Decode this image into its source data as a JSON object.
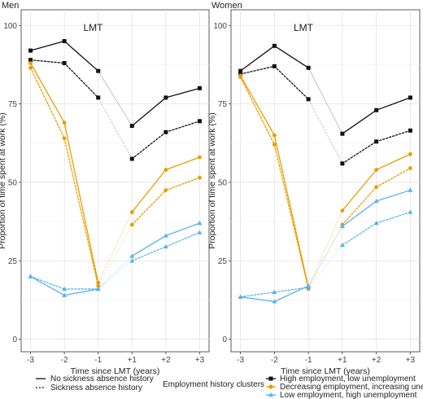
{
  "legend": {
    "linetype_items": [
      {
        "label": "No sickness absence history",
        "dash": false
      },
      {
        "label": "Sickness absence history",
        "dash": true
      }
    ],
    "cluster_title": "Employment history clusters",
    "cluster_items": [
      {
        "label": "High employment, low unemployment",
        "color": "#111111",
        "marker": "square"
      },
      {
        "label": "Decreasing employment, increasing unemployment",
        "color": "#e69f00",
        "marker": "circle"
      },
      {
        "label": "Low employment, high unemployment",
        "color": "#56b4e9",
        "marker": "triangle"
      }
    ]
  },
  "chart_data": [
    {
      "type": "line",
      "title": "Men",
      "annotation": "LMT",
      "xlabel": "Time since LMT (years)",
      "ylabel": "Proportion of time spent at work (%)",
      "categories": [
        "-3",
        "-2",
        "-1",
        "+1",
        "+2",
        "+3"
      ],
      "yticks": [
        0,
        25,
        50,
        75,
        100
      ],
      "ylim": [
        -4,
        105
      ],
      "grid": true,
      "series": [
        {
          "cluster": 0,
          "dash": false,
          "values": [
            92,
            95,
            85.5,
            68,
            77,
            80
          ]
        },
        {
          "cluster": 0,
          "dash": true,
          "values": [
            89,
            88,
            77,
            57.5,
            66,
            69.5
          ]
        },
        {
          "cluster": 1,
          "dash": false,
          "values": [
            88,
            69,
            18,
            40.5,
            54,
            58
          ]
        },
        {
          "cluster": 1,
          "dash": true,
          "values": [
            86.5,
            64,
            17,
            36.5,
            47.5,
            51.5
          ]
        },
        {
          "cluster": 2,
          "dash": false,
          "values": [
            20,
            14,
            16,
            26.5,
            33,
            37
          ]
        },
        {
          "cluster": 2,
          "dash": true,
          "values": [
            20,
            16,
            16,
            25,
            29.5,
            34
          ]
        }
      ]
    },
    {
      "type": "line",
      "title": "Women",
      "annotation": "LMT",
      "xlabel": "Time since LMT (years)",
      "ylabel": "Proportion of time spent at work (%)",
      "categories": [
        "-3",
        "-2",
        "-1",
        "+1",
        "+2",
        "+3"
      ],
      "yticks": [
        0,
        25,
        50,
        75,
        100
      ],
      "ylim": [
        -4,
        105
      ],
      "grid": true,
      "series": [
        {
          "cluster": 0,
          "dash": false,
          "values": [
            85.5,
            93.5,
            86.5,
            65.5,
            73,
            77
          ]
        },
        {
          "cluster": 0,
          "dash": true,
          "values": [
            84.5,
            87,
            76.5,
            56,
            63,
            66.5
          ]
        },
        {
          "cluster": 1,
          "dash": false,
          "values": [
            84,
            65,
            16.5,
            41,
            54,
            59
          ]
        },
        {
          "cluster": 1,
          "dash": true,
          "values": [
            83.5,
            62,
            16,
            36.5,
            48.5,
            54.5
          ]
        },
        {
          "cluster": 2,
          "dash": false,
          "values": [
            13.5,
            12,
            17,
            36,
            44,
            47.5
          ]
        },
        {
          "cluster": 2,
          "dash": true,
          "values": [
            13.5,
            15,
            16.5,
            30,
            37,
            40.5
          ]
        }
      ]
    }
  ]
}
